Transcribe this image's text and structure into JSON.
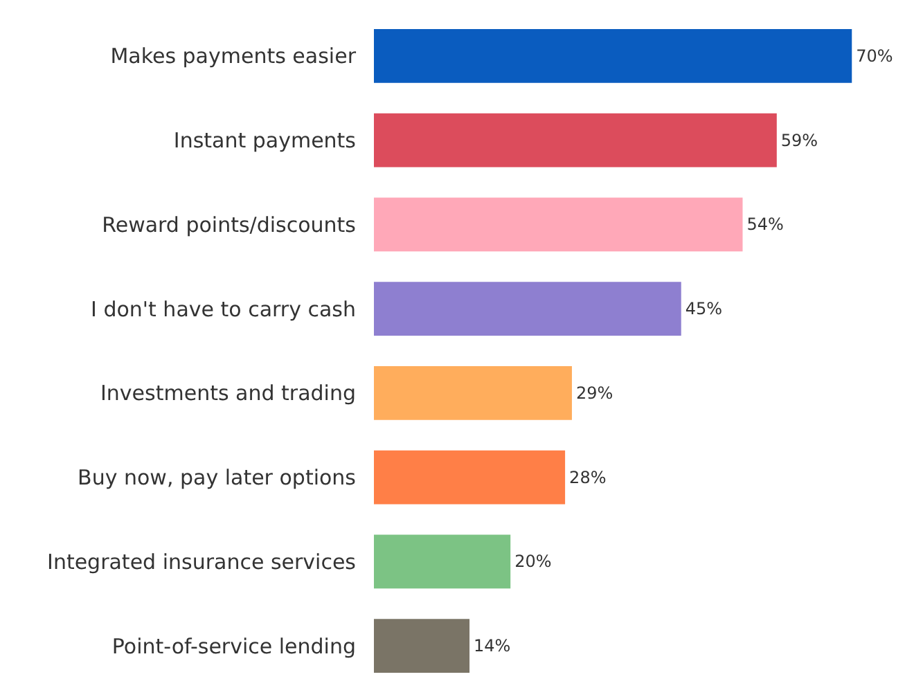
{
  "chart_data": {
    "type": "bar",
    "orientation": "horizontal",
    "categories": [
      "Makes payments easier",
      "Instant payments",
      "Reward points/discounts",
      "I don't have to carry cash",
      "Investments and trading",
      "Buy now, pay later options",
      "Integrated insurance services",
      "Point-of-service lending"
    ],
    "values": [
      70,
      59,
      54,
      45,
      29,
      28,
      20,
      14
    ],
    "value_labels": [
      "70%",
      "59%",
      "54%",
      "45%",
      "29%",
      "28%",
      "20%",
      "14%"
    ],
    "colors": [
      "#0a5cbf",
      "#dc4c5c",
      "#ffa8b8",
      "#8e7fd0",
      "#ffad5c",
      "#ff7f47",
      "#7cc384",
      "#7a7466"
    ]
  }
}
